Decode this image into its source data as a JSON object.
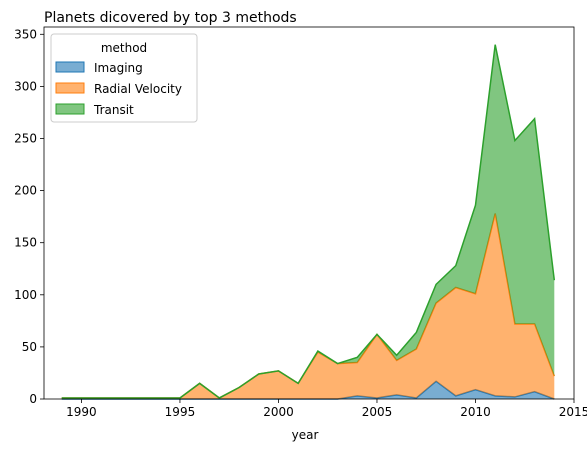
{
  "chart_data": {
    "type": "area",
    "stacked": true,
    "title": "Planets dicovered by top 3 methods",
    "xlabel": "year",
    "ylabel": "",
    "xlim": [
      1988.1,
      2015
    ],
    "ylim": [
      0,
      357
    ],
    "xticks": [
      1990,
      1995,
      2000,
      2005,
      2010,
      2015
    ],
    "yticks": [
      0,
      50,
      100,
      150,
      200,
      250,
      300,
      350
    ],
    "x": [
      1989,
      1990,
      1991,
      1992,
      1993,
      1994,
      1995,
      1996,
      1997,
      1998,
      1999,
      2000,
      2001,
      2002,
      2003,
      2004,
      2005,
      2006,
      2007,
      2008,
      2009,
      2010,
      2011,
      2012,
      2013,
      2014
    ],
    "series": [
      {
        "name": "Imaging",
        "color": "#1f77b4",
        "values": [
          0,
          0,
          0,
          0,
          0,
          0,
          0,
          0,
          0,
          0,
          0,
          0,
          0,
          0,
          0,
          3,
          1,
          4,
          1,
          17,
          3,
          9,
          3,
          2,
          7,
          0
        ]
      },
      {
        "name": "Radial Velocity",
        "color": "#ff7f0e",
        "values": [
          1,
          1,
          1,
          1,
          1,
          1,
          1,
          15,
          1,
          11,
          24,
          27,
          15,
          45,
          34,
          32,
          61,
          33,
          47,
          75,
          104,
          92,
          175,
          70,
          65,
          22
        ]
      },
      {
        "name": "Transit",
        "color": "#2ca02c",
        "values": [
          0,
          0,
          0,
          0,
          0,
          0,
          0,
          0,
          0,
          0,
          0,
          0,
          0,
          1,
          0,
          5,
          0,
          5,
          16,
          18,
          21,
          85,
          162,
          176,
          197,
          92
        ]
      }
    ],
    "legend": {
      "title": "method",
      "placement": "top-left"
    },
    "grid": false
  }
}
